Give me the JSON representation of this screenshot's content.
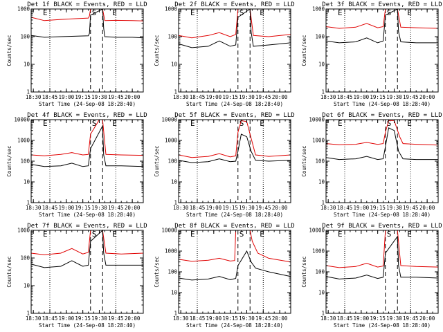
{
  "figure": {
    "start_time_label": "Start Time (24-Sep-08 18:28:40)",
    "ylabel": "Counts/sec",
    "marker_labels": [
      "E",
      "S",
      "E"
    ],
    "colors": {
      "events": "#000000",
      "lld": "#e00000",
      "axes": "#000000"
    }
  },
  "chart_data": [
    {
      "type": "line",
      "title": "Det 1f BLACK = Events, RED = LLD",
      "scale": "log",
      "ylim": [
        1,
        1000
      ],
      "yticks": [
        "1",
        "10",
        "100",
        "1000"
      ],
      "xticks": [
        "18:30",
        "18:45",
        "19:00",
        "19:15",
        "19:30",
        "19:45",
        "20:00"
      ],
      "xlim": [
        "18:28",
        "20:10"
      ],
      "dotted_lines": [
        "18:45",
        "19:45"
      ],
      "dashed_lines": [
        "19:22",
        "19:33"
      ],
      "series": [
        {
          "x": [
            "18:28",
            "18:40",
            "18:55",
            "19:10",
            "19:20",
            "19:21",
            "19:22",
            "19:33",
            "19:35",
            "19:45",
            "20:00",
            "20:10"
          ],
          "values": [
            500,
            380,
            420,
            450,
            470,
            560,
            1000,
            1000,
            380,
            390,
            380,
            370
          ],
          "color": "#e00000"
        },
        {
          "x": [
            "18:28",
            "18:40",
            "18:55",
            "19:10",
            "19:20",
            "19:21",
            "19:22",
            "19:33",
            "19:34",
            "19:35",
            "19:45",
            "20:00",
            "20:10"
          ],
          "values": [
            110,
            95,
            100,
            105,
            108,
            130,
            600,
            1000,
            200,
            100,
            95,
            95,
            90
          ],
          "color": "#000000"
        }
      ]
    },
    {
      "type": "line",
      "title": "Det 2f BLACK = Events, RED = LLD",
      "scale": "log",
      "ylim": [
        1,
        1000
      ],
      "yticks": [
        "1",
        "10",
        "100",
        "1000"
      ],
      "xticks": [
        "18:30",
        "18:45",
        "19:00",
        "19:15",
        "19:30",
        "19:45",
        "20:00"
      ],
      "xlim": [
        "18:28",
        "20:10"
      ],
      "dotted_lines": [
        "18:45",
        "19:45"
      ],
      "dashed_lines": [
        "19:22",
        "19:33"
      ],
      "series": [
        {
          "x": [
            "18:28",
            "18:40",
            "18:55",
            "19:05",
            "19:15",
            "19:20",
            "19:22",
            "19:30",
            "19:33",
            "19:36",
            "19:50",
            "20:10"
          ],
          "values": [
            110,
            90,
            110,
            140,
            100,
            120,
            1000,
            1000,
            1000,
            110,
            100,
            120
          ],
          "color": "#e00000"
        },
        {
          "x": [
            "18:28",
            "18:40",
            "18:55",
            "19:05",
            "19:15",
            "19:20",
            "19:22",
            "19:33",
            "19:34",
            "19:36",
            "19:50",
            "20:10"
          ],
          "values": [
            55,
            40,
            45,
            70,
            45,
            50,
            500,
            1000,
            150,
            45,
            50,
            60
          ],
          "color": "#000000"
        }
      ]
    },
    {
      "type": "line",
      "title": "Det 3f BLACK = Events, RED = LLD",
      "scale": "log",
      "ylim": [
        1,
        1000
      ],
      "yticks": [
        "1",
        "10",
        "100",
        "1000"
      ],
      "xticks": [
        "18:30",
        "18:45",
        "19:00",
        "19:15",
        "19:30",
        "19:45",
        "20:00"
      ],
      "xlim": [
        "18:28",
        "20:10"
      ],
      "dotted_lines": [
        "18:45",
        "19:45"
      ],
      "dashed_lines": [
        "19:22",
        "19:33"
      ],
      "series": [
        {
          "x": [
            "18:28",
            "18:40",
            "18:55",
            "19:05",
            "19:15",
            "19:20",
            "19:22",
            "19:33",
            "19:36",
            "19:50",
            "20:10"
          ],
          "values": [
            230,
            200,
            220,
            300,
            210,
            230,
            1000,
            1000,
            220,
            210,
            200
          ],
          "color": "#e00000"
        },
        {
          "x": [
            "18:28",
            "18:40",
            "18:55",
            "19:05",
            "19:15",
            "19:20",
            "19:22",
            "19:33",
            "19:34",
            "19:36",
            "19:50",
            "20:10"
          ],
          "values": [
            70,
            60,
            65,
            90,
            60,
            70,
            600,
            1000,
            150,
            65,
            60,
            60
          ],
          "color": "#000000"
        }
      ]
    },
    {
      "type": "line",
      "title": "Det 4f BLACK = Events, RED = LLD",
      "scale": "log",
      "ylim": [
        1,
        10000
      ],
      "yticks": [
        "1",
        "10",
        "100",
        "1000",
        "10000"
      ],
      "xticks": [
        "18:30",
        "18:45",
        "19:00",
        "19:15",
        "19:30",
        "19:45",
        "20:00"
      ],
      "xlim": [
        "18:28",
        "20:10"
      ],
      "dotted_lines": [
        "18:45",
        "19:45"
      ],
      "dashed_lines": [
        "19:22",
        "19:33"
      ],
      "series": [
        {
          "x": [
            "18:28",
            "18:40",
            "18:55",
            "19:05",
            "19:15",
            "19:20",
            "19:22",
            "19:30",
            "19:33",
            "19:36",
            "19:50",
            "20:10"
          ],
          "values": [
            200,
            180,
            210,
            260,
            200,
            210,
            2000,
            10000,
            10000,
            210,
            200,
            190
          ],
          "color": "#e00000"
        },
        {
          "x": [
            "18:28",
            "18:40",
            "18:55",
            "19:05",
            "19:15",
            "19:20",
            "19:22",
            "19:33",
            "19:34",
            "19:36",
            "19:50",
            "20:10"
          ],
          "values": [
            70,
            55,
            60,
            80,
            55,
            60,
            400,
            5000,
            200,
            60,
            60,
            55
          ],
          "color": "#000000"
        }
      ]
    },
    {
      "type": "line",
      "title": "Det 5f BLACK = Events, RED = LLD",
      "scale": "log",
      "ylim": [
        1,
        10000
      ],
      "yticks": [
        "1",
        "10",
        "100",
        "1000",
        "10000"
      ],
      "xticks": [
        "18:30",
        "18:45",
        "19:00",
        "19:15",
        "19:30",
        "19:45",
        "20:00"
      ],
      "xlim": [
        "18:28",
        "20:10"
      ],
      "dotted_lines": [
        "18:45",
        "19:45"
      ],
      "dashed_lines": [
        "19:22",
        "19:33"
      ],
      "series": [
        {
          "x": [
            "18:28",
            "18:40",
            "18:55",
            "19:05",
            "19:15",
            "19:20",
            "19:22",
            "19:25",
            "19:30",
            "19:35",
            "19:38",
            "19:50",
            "20:10"
          ],
          "values": [
            200,
            150,
            170,
            230,
            160,
            180,
            2500,
            9000,
            8000,
            800,
            200,
            170,
            200
          ],
          "color": "#e00000"
        },
        {
          "x": [
            "18:28",
            "18:40",
            "18:55",
            "19:05",
            "19:15",
            "19:20",
            "19:22",
            "19:25",
            "19:30",
            "19:34",
            "19:38",
            "19:50",
            "20:10"
          ],
          "values": [
            110,
            85,
            95,
            130,
            95,
            100,
            300,
            2000,
            1500,
            300,
            110,
            100,
            110
          ],
          "color": "#000000"
        }
      ]
    },
    {
      "type": "line",
      "title": "Det 6f BLACK = Events, RED = LLD",
      "scale": "log",
      "ylim": [
        1,
        10000
      ],
      "yticks": [
        "1",
        "10",
        "100",
        "1000",
        "10000"
      ],
      "xticks": [
        "18:30",
        "18:45",
        "19:00",
        "19:15",
        "19:30",
        "19:45",
        "20:00"
      ],
      "xlim": [
        "18:28",
        "20:10"
      ],
      "dotted_lines": [
        "18:45",
        "19:45"
      ],
      "dashed_lines": [
        "19:22",
        "19:33"
      ],
      "series": [
        {
          "x": [
            "18:28",
            "18:40",
            "18:55",
            "19:05",
            "19:15",
            "19:20",
            "19:22",
            "19:25",
            "19:30",
            "19:35",
            "19:38",
            "19:50",
            "20:10"
          ],
          "values": [
            700,
            620,
            650,
            800,
            640,
            700,
            2500,
            9000,
            9000,
            1500,
            700,
            650,
            600
          ],
          "color": "#e00000"
        },
        {
          "x": [
            "18:28",
            "18:40",
            "18:55",
            "19:05",
            "19:15",
            "19:20",
            "19:22",
            "19:25",
            "19:30",
            "19:34",
            "19:38",
            "19:50",
            "20:10"
          ],
          "values": [
            150,
            120,
            130,
            170,
            120,
            130,
            500,
            4000,
            3000,
            300,
            130,
            120,
            120
          ],
          "color": "#000000"
        }
      ]
    },
    {
      "type": "line",
      "title": "Det 7f BLACK = Events, RED = LLD",
      "scale": "log",
      "ylim": [
        1,
        1000
      ],
      "yticks": [
        "1",
        "10",
        "100",
        "1000"
      ],
      "xticks": [
        "18:30",
        "18:45",
        "19:00",
        "19:15",
        "19:30",
        "19:45",
        "20:00"
      ],
      "xlim": [
        "18:28",
        "20:10"
      ],
      "dotted_lines": [
        "18:45",
        "19:45"
      ],
      "dashed_lines": [
        "19:22",
        "19:33"
      ],
      "series": [
        {
          "x": [
            "18:28",
            "18:40",
            "18:55",
            "19:05",
            "19:15",
            "19:20",
            "19:22",
            "19:33",
            "19:36",
            "19:50",
            "20:10"
          ],
          "values": [
            150,
            130,
            150,
            220,
            140,
            160,
            1000,
            1000,
            150,
            140,
            150
          ],
          "color": "#e00000"
        },
        {
          "x": [
            "18:28",
            "18:40",
            "18:55",
            "19:05",
            "19:15",
            "19:20",
            "19:22",
            "19:33",
            "19:34",
            "19:36",
            "19:50",
            "20:10"
          ],
          "values": [
            60,
            45,
            50,
            80,
            50,
            55,
            400,
            1000,
            150,
            55,
            55,
            55
          ],
          "color": "#000000"
        }
      ]
    },
    {
      "type": "line",
      "title": "Det 8f BLACK = Events, RED = LLD",
      "scale": "log",
      "ylim": [
        1,
        10000
      ],
      "yticks": [
        "1",
        "10",
        "100",
        "1000",
        "10000"
      ],
      "xticks": [
        "18:30",
        "18:45",
        "19:00",
        "19:15",
        "19:30",
        "19:45",
        "20:00"
      ],
      "xlim": [
        "18:28",
        "20:10"
      ],
      "dotted_lines": [
        "18:45",
        "19:45"
      ],
      "dashed_lines": [
        "19:22",
        "19:33"
      ],
      "series": [
        {
          "x": [
            "18:28",
            "18:40",
            "18:55",
            "19:05",
            "19:15",
            "19:19",
            "19:20",
            "19:33",
            "19:35",
            "19:40",
            "19:50",
            "20:10"
          ],
          "values": [
            400,
            320,
            360,
            450,
            330,
            350,
            10000,
            10000,
            3000,
            800,
            450,
            300
          ],
          "color": "#e00000"
        },
        {
          "x": [
            "18:28",
            "18:40",
            "18:55",
            "19:05",
            "19:15",
            "19:20",
            "19:22",
            "19:30",
            "19:34",
            "19:38",
            "19:50",
            "20:10"
          ],
          "values": [
            50,
            40,
            45,
            60,
            42,
            48,
            200,
            1000,
            300,
            150,
            100,
            60
          ],
          "color": "#000000"
        }
      ]
    },
    {
      "type": "line",
      "title": "Det 9f BLACK = Events, RED = LLD",
      "scale": "log",
      "ylim": [
        1,
        10000
      ],
      "yticks": [
        "1",
        "10",
        "100",
        "1000",
        "10000"
      ],
      "xticks": [
        "18:30",
        "18:45",
        "19:00",
        "19:15",
        "19:30",
        "19:45",
        "20:00"
      ],
      "xlim": [
        "18:28",
        "20:10"
      ],
      "dotted_lines": [
        "18:45",
        "19:45"
      ],
      "dashed_lines": [
        "19:22",
        "19:33"
      ],
      "series": [
        {
          "x": [
            "18:28",
            "18:40",
            "18:55",
            "19:05",
            "19:15",
            "19:20",
            "19:22",
            "19:33",
            "19:36",
            "19:50",
            "20:10"
          ],
          "values": [
            200,
            160,
            180,
            260,
            170,
            190,
            10000,
            10000,
            200,
            180,
            170
          ],
          "color": "#e00000"
        },
        {
          "x": [
            "18:28",
            "18:40",
            "18:55",
            "19:05",
            "19:15",
            "19:20",
            "19:22",
            "19:33",
            "19:34",
            "19:36",
            "19:50",
            "20:10"
          ],
          "values": [
            60,
            45,
            50,
            70,
            48,
            55,
            800,
            5000,
            200,
            55,
            55,
            50
          ],
          "color": "#000000"
        }
      ]
    }
  ]
}
